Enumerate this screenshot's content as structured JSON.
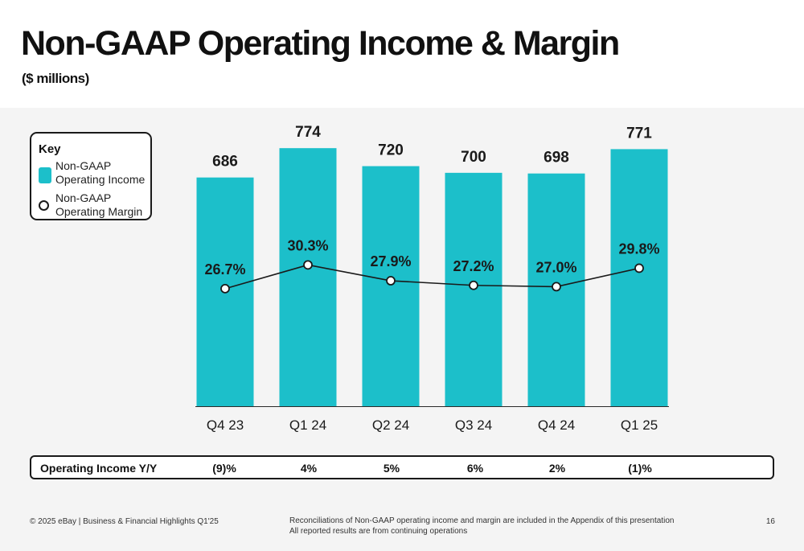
{
  "title": "Non-GAAP Operating Income & Margin",
  "subtitle": "($ millions)",
  "key": {
    "title": "Key",
    "income_label": "Non-GAAP Operating Income",
    "margin_label": "Non-GAAP Operating Margin"
  },
  "colors": {
    "bar": "#1cbfca",
    "line": "#1a1a1a",
    "background_panel": "#f4f4f4"
  },
  "chart_data": {
    "type": "bar",
    "categories": [
      "Q4 23",
      "Q1 24",
      "Q2 24",
      "Q3 24",
      "Q4 24",
      "Q1 25"
    ],
    "series": [
      {
        "name": "Non-GAAP Operating Income",
        "values": [
          686,
          774,
          720,
          700,
          698,
          771
        ],
        "value_labels": [
          "686",
          "774",
          "720",
          "700",
          "698",
          "771"
        ]
      },
      {
        "name": "Non-GAAP Operating Margin",
        "type": "line",
        "values": [
          26.7,
          30.3,
          27.9,
          27.2,
          27.0,
          29.8
        ],
        "value_labels": [
          "26.7%",
          "30.3%",
          "27.9%",
          "27.2%",
          "27.0%",
          "29.8%"
        ]
      }
    ],
    "xlabel": "",
    "ylabel": "",
    "grid": false,
    "legend_position": "top-left"
  },
  "yoy": {
    "label": "Operating Income Y/Y",
    "values": [
      "(9)%",
      "4%",
      "5%",
      "6%",
      "2%",
      "(1)%"
    ]
  },
  "footer": {
    "left": "© 2025 eBay | Business & Financial Highlights Q1'25",
    "note_line1": "Reconciliations of Non-GAAP operating income and margin are included in the Appendix of this presentation",
    "note_line2": "All reported results are from continuing operations",
    "page": "16"
  }
}
